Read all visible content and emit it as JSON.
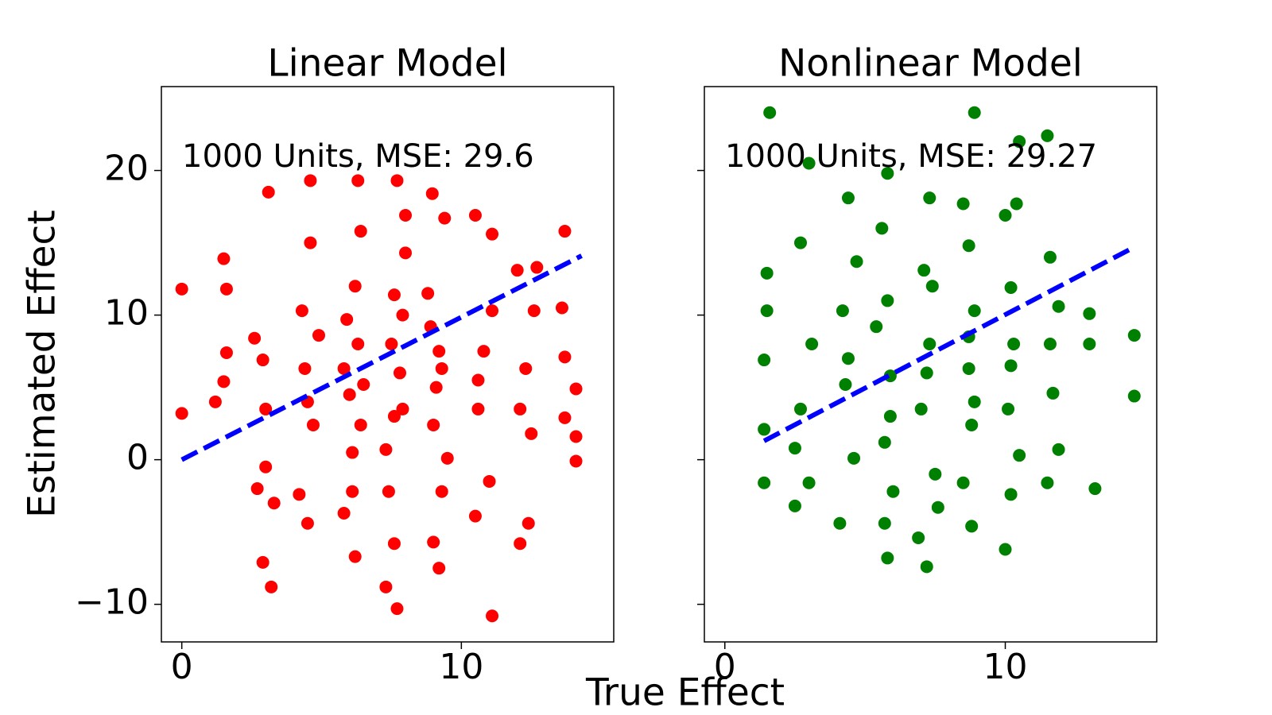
{
  "chart_data": [
    {
      "type": "scatter",
      "title": "Linear Model",
      "annotation": "1000 Units, MSE: 29.6",
      "x_label": "True Effect",
      "y_label": "Estimated Effect",
      "xlim": [
        -0.73,
        15.45
      ],
      "ylim": [
        -12.6,
        25.8
      ],
      "xticks": [
        0,
        10
      ],
      "yticks": [
        {
          "value": -10,
          "label": "−10"
        },
        0,
        10,
        20
      ],
      "series": [
        {
          "type": "scatter",
          "color": "#ff0000",
          "x": [
            0,
            0,
            1.2,
            1.5,
            1.6,
            1.6,
            1.5,
            2.9,
            3.2,
            3.1,
            2.6,
            2.7,
            3.0,
            3.3,
            3.0,
            2.9,
            4.6,
            4.6,
            4.5,
            4.2,
            4.4,
            4.3,
            4.7,
            4.9,
            6.3,
            6.4,
            6.2,
            5.8,
            6.1,
            5.8,
            6.2,
            6.4,
            5.9,
            6.5,
            7.7,
            8.0,
            7.7,
            7.3,
            7.6,
            7.4,
            8.0,
            7.5,
            7.9,
            7.3,
            7.6,
            8.96,
            9.2,
            9.0,
            9.3,
            9.4,
            8.9,
            9.3,
            9.0,
            9.5,
            10.5,
            11.1,
            10.5,
            11.0,
            11.1,
            10.8,
            10.6,
            11.1,
            12.1,
            12.4,
            12.0,
            12.3,
            12.5,
            12.1,
            12.7,
            13.7,
            13.6,
            13.7,
            13.7,
            14.1,
            14.1,
            14.1,
            12.6,
            6.0,
            7.8,
            9.1,
            4.5,
            6.3,
            7.6,
            9.2,
            10.6,
            6.1,
            7.9,
            8.8
          ],
          "y": [
            11.8,
            3.2,
            4.0,
            13.9,
            11.8,
            7.4,
            5.4,
            -7.1,
            -8.8,
            18.5,
            8.4,
            -2.0,
            -0.5,
            -3.0,
            3.5,
            6.9,
            19.3,
            15.0,
            -4.4,
            -2.4,
            6.3,
            10.3,
            2.4,
            8.6,
            19.3,
            15.8,
            -6.7,
            -3.7,
            -2.2,
            6.3,
            12.0,
            2.4,
            9.7,
            5.2,
            19.3,
            16.9,
            -10.3,
            -8.8,
            -5.8,
            -2.2,
            14.3,
            8.0,
            3.5,
            0.7,
            11.4,
            18.4,
            -7.5,
            -5.7,
            -2.2,
            16.7,
            9.2,
            6.3,
            2.4,
            0.1,
            16.9,
            -10.8,
            -3.9,
            -1.5,
            15.6,
            7.5,
            3.5,
            10.3,
            -5.8,
            -4.4,
            13.1,
            6.3,
            1.8,
            3.5,
            13.3,
            15.8,
            10.5,
            7.1,
            2.9,
            4.9,
            -0.1,
            1.6,
            10.3,
            4.5,
            6.0,
            5.0,
            4.0,
            8.0,
            3.0,
            7.5,
            5.5,
            0.5,
            10.0,
            11.5
          ]
        },
        {
          "type": "line",
          "color": "#0000ff",
          "linestyle": "dashed",
          "x": [
            0,
            14.3
          ],
          "y": [
            0,
            14.1
          ]
        }
      ]
    },
    {
      "type": "scatter",
      "title": "Nonlinear Model",
      "annotation": "1000 Units, MSE: 29.27",
      "sharey": true,
      "xlim": [
        -0.73,
        15.4
      ],
      "ylim": [
        -12.6,
        25.8
      ],
      "xticks": [
        0,
        10
      ],
      "series": [
        {
          "type": "scatter",
          "color": "#008000",
          "x": [
            1.6,
            8.9,
            11.5,
            10.5,
            1.4,
            1.5,
            1.5,
            1.4,
            1.4,
            2.5,
            2.7,
            3.0,
            3.0,
            3.1,
            2.7,
            2.5,
            4.1,
            4.4,
            4.2,
            4.3,
            4.6,
            4.7,
            5.8,
            5.7,
            5.8,
            5.6,
            5.4,
            5.9,
            5.7,
            6.0,
            7.2,
            7.3,
            6.9,
            7.1,
            7.3,
            7.0,
            7.5,
            7.6,
            8.8,
            8.5,
            8.7,
            8.9,
            8.7,
            8.8,
            8.5,
            10.0,
            10.2,
            10.0,
            10.3,
            10.1,
            10.5,
            10.2,
            11.5,
            11.6,
            11.6,
            11.7,
            11.9,
            11.9,
            13.2,
            13.0,
            13.0,
            14.6,
            14.6,
            10.4,
            4.4,
            5.8,
            7.2,
            8.7,
            5.9,
            7.4,
            8.9,
            10.2
          ],
          "y": [
            24.0,
            24.0,
            22.4,
            22.0,
            -1.6,
            12.9,
            10.3,
            6.9,
            2.1,
            -3.2,
            15.0,
            20.5,
            -1.6,
            8.0,
            3.5,
            0.8,
            -4.4,
            18.1,
            10.3,
            5.2,
            0.1,
            13.7,
            -6.8,
            -4.4,
            19.8,
            16.0,
            9.2,
            5.8,
            1.2,
            -2.2,
            -7.4,
            18.1,
            -5.4,
            13.1,
            8.0,
            3.5,
            -1.0,
            -3.3,
            -4.6,
            17.7,
            14.8,
            10.3,
            6.3,
            2.4,
            -1.6,
            -6.2,
            -2.4,
            16.9,
            8.0,
            3.5,
            0.3,
            11.9,
            -1.6,
            14.0,
            8.0,
            4.6,
            0.7,
            10.6,
            -2.0,
            10.1,
            8.0,
            8.6,
            4.4,
            17.7,
            7.0,
            11.0,
            6.0,
            8.5,
            3.0,
            12.0,
            4.0,
            6.5
          ]
        },
        {
          "type": "line",
          "color": "#0000ff",
          "linestyle": "dashed",
          "x": [
            1.4,
            14.6
          ],
          "y": [
            1.3,
            14.7
          ]
        }
      ]
    }
  ]
}
